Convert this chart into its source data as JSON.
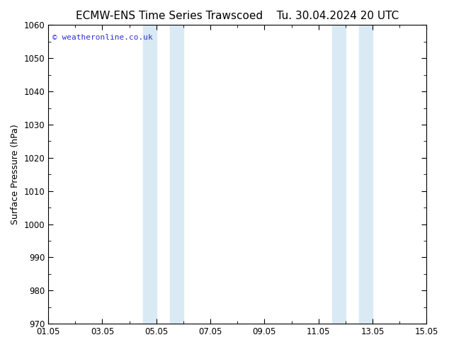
{
  "title_left": "ECMW-ENS Time Series Trawscoed",
  "title_right": "Tu. 30.04.2024 20 UTC",
  "ylabel": "Surface Pressure (hPa)",
  "ylim": [
    970,
    1060
  ],
  "yticks": [
    970,
    980,
    990,
    1000,
    1010,
    1020,
    1030,
    1040,
    1050,
    1060
  ],
  "xtick_labels": [
    "01.05",
    "03.05",
    "05.05",
    "07.05",
    "09.05",
    "11.05",
    "13.05",
    "15.05"
  ],
  "xtick_positions": [
    0,
    2,
    4,
    6,
    8,
    10,
    12,
    14
  ],
  "xlim": [
    0,
    14
  ],
  "shade_bands": [
    {
      "xmin": 3.5,
      "xmax": 4.0
    },
    {
      "xmin": 4.5,
      "xmax": 5.0
    },
    {
      "xmin": 10.5,
      "xmax": 11.0
    },
    {
      "xmin": 11.5,
      "xmax": 12.0
    }
  ],
  "shade_color": "#daeaf5",
  "background_color": "#ffffff",
  "plot_bg_color": "#ffffff",
  "watermark": "© weatheronline.co.uk",
  "watermark_color": "#3333cc",
  "title_fontsize": 11,
  "label_fontsize": 9,
  "tick_fontsize": 8.5
}
